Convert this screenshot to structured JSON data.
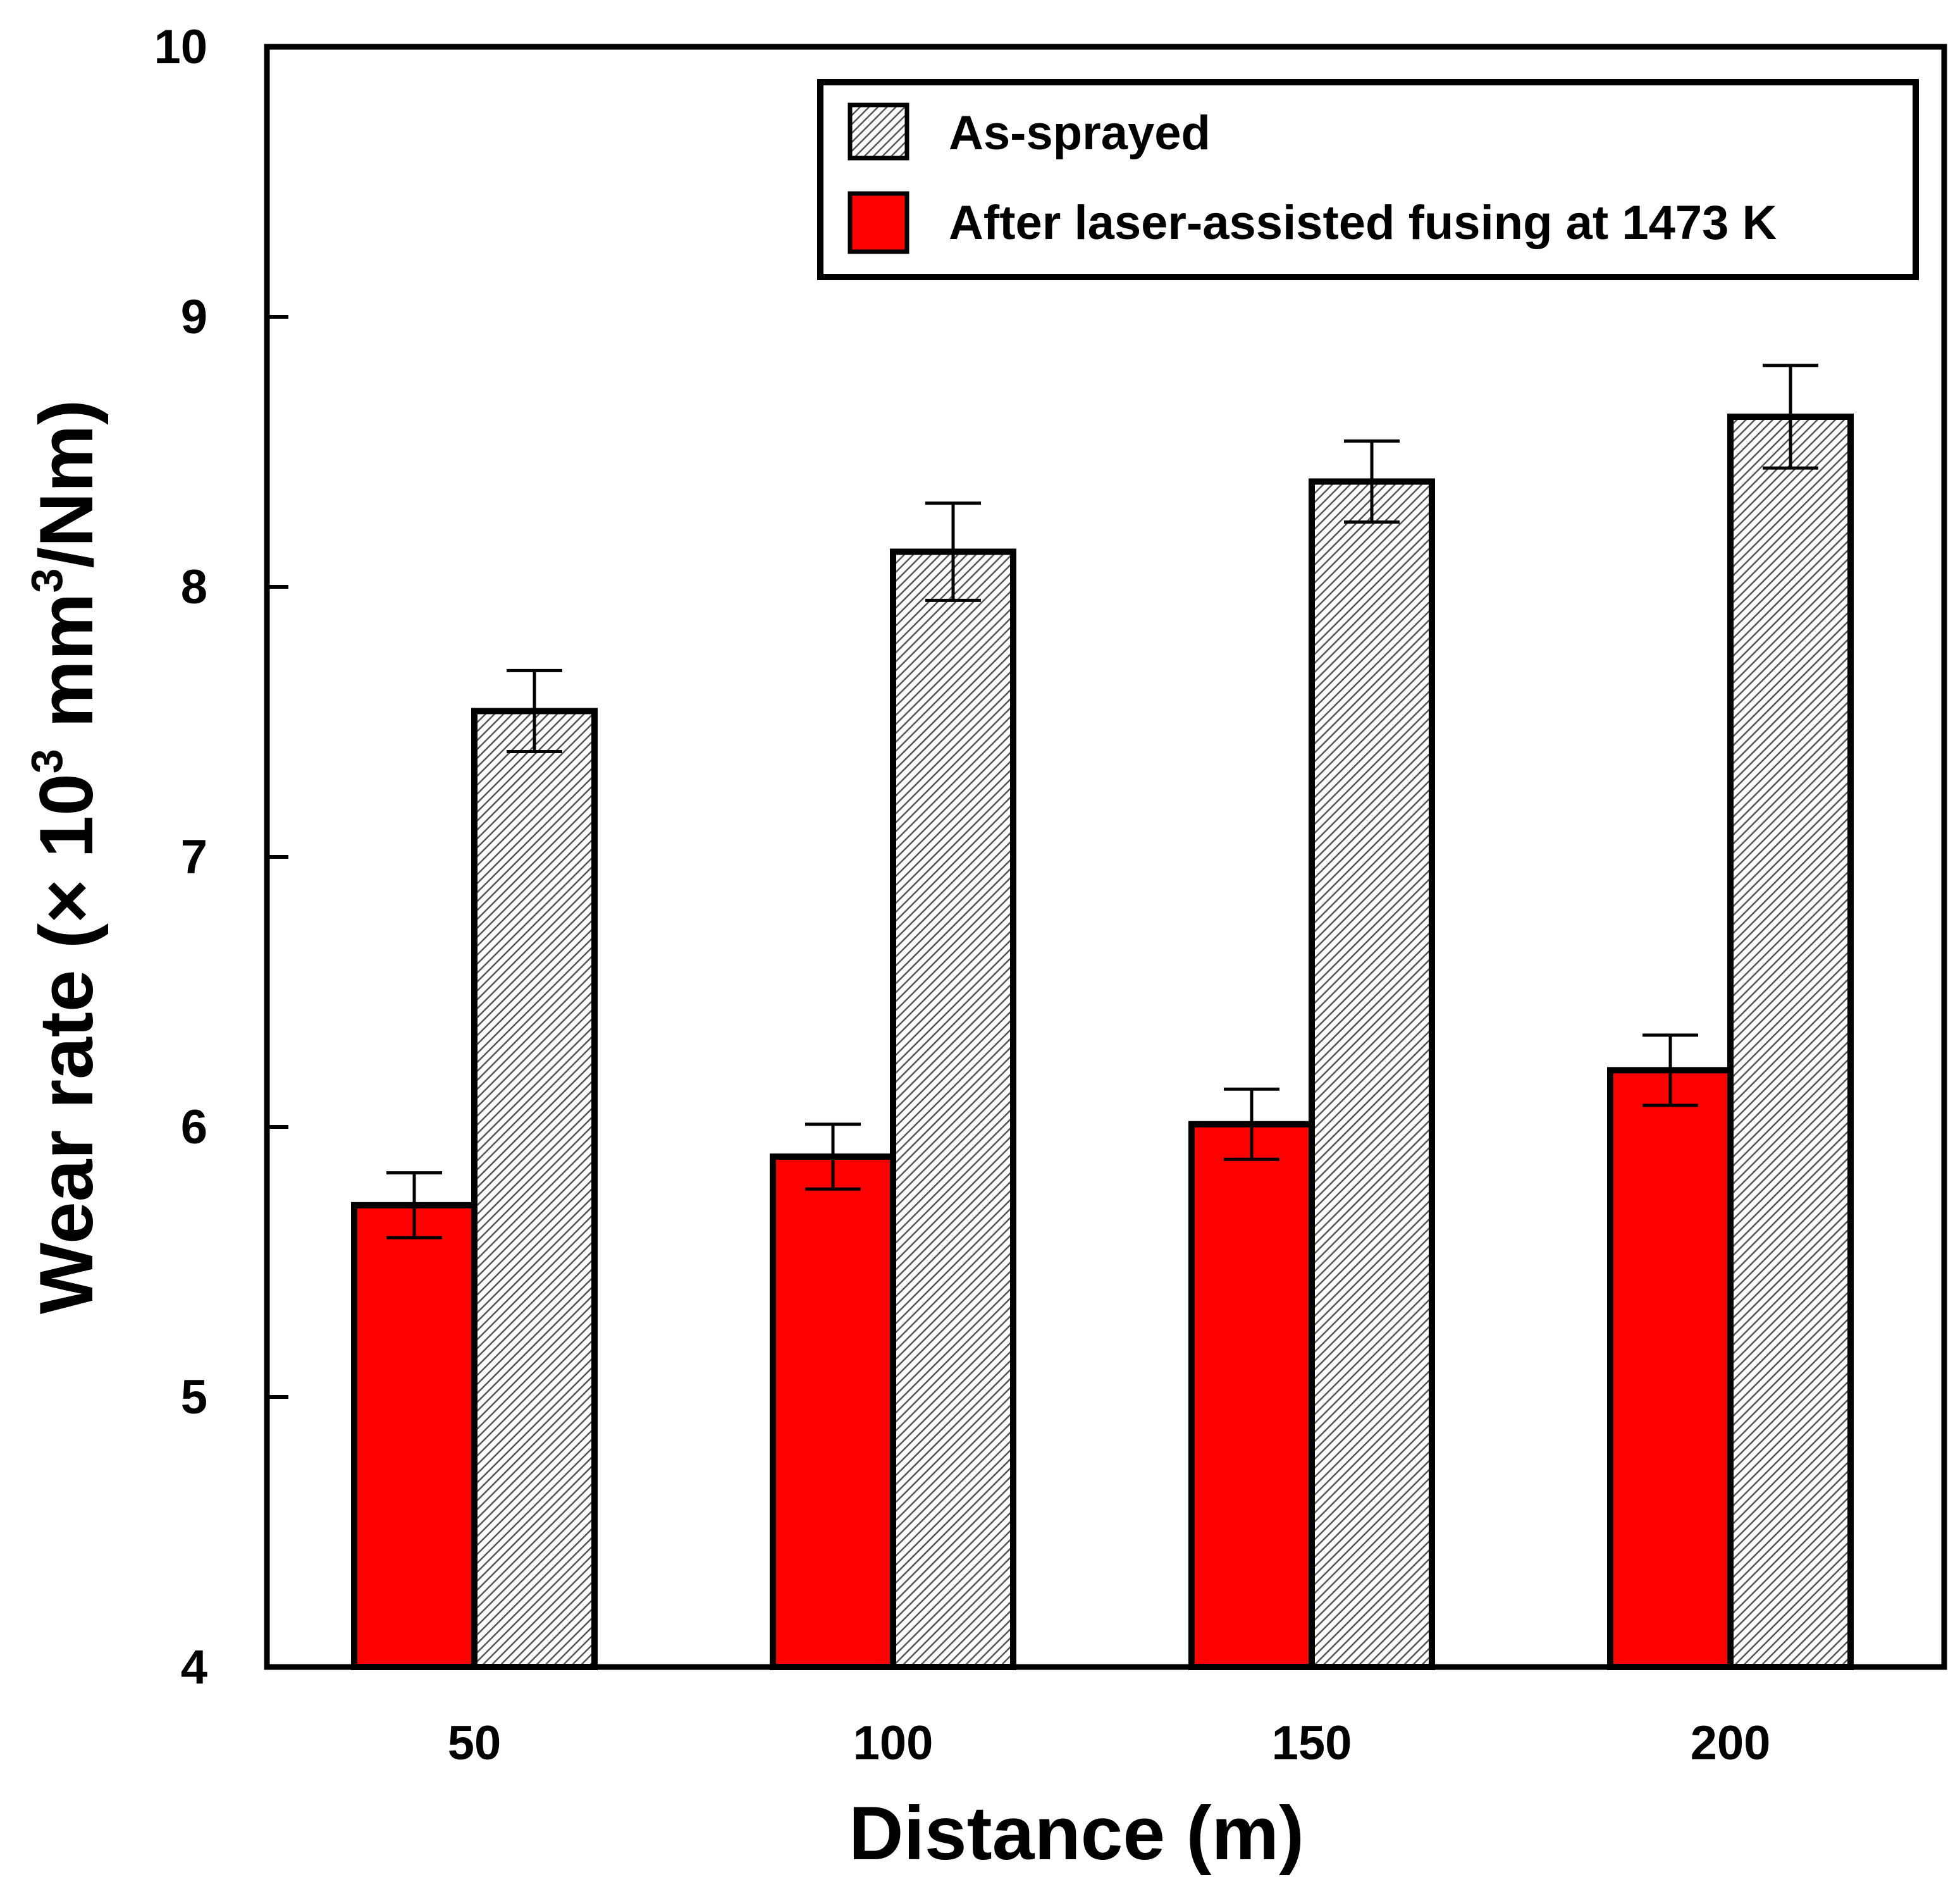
{
  "chart_data": {
    "type": "bar",
    "title": "",
    "xlabel": "Distance (m)",
    "ylabel": {
      "prefix": "Wear rate (× 10",
      "sup1": "3",
      "middle": " mm",
      "sup2": "3",
      "suffix": "/Nm)"
    },
    "categories": [
      "50",
      "100",
      "150",
      "200"
    ],
    "ylim": [
      4,
      10
    ],
    "yticks": [
      "4",
      "5",
      "6",
      "7",
      "8",
      "9",
      "10"
    ],
    "grid": false,
    "legend_position": "top-right",
    "series": [
      {
        "name": "After laser-assisted fusing at 1473 K",
        "color": "#ff0000",
        "pattern": "solid",
        "values": [
          5.71,
          5.89,
          6.01,
          6.21
        ],
        "errors": [
          0.12,
          0.12,
          0.13,
          0.13
        ]
      },
      {
        "name": "As-sprayed",
        "color": "#d9d9d9",
        "pattern": "hatch",
        "values": [
          7.54,
          8.13,
          8.39,
          8.63
        ],
        "errors": [
          0.15,
          0.18,
          0.15,
          0.19
        ]
      }
    ],
    "legend_order": [
      1,
      0
    ]
  }
}
